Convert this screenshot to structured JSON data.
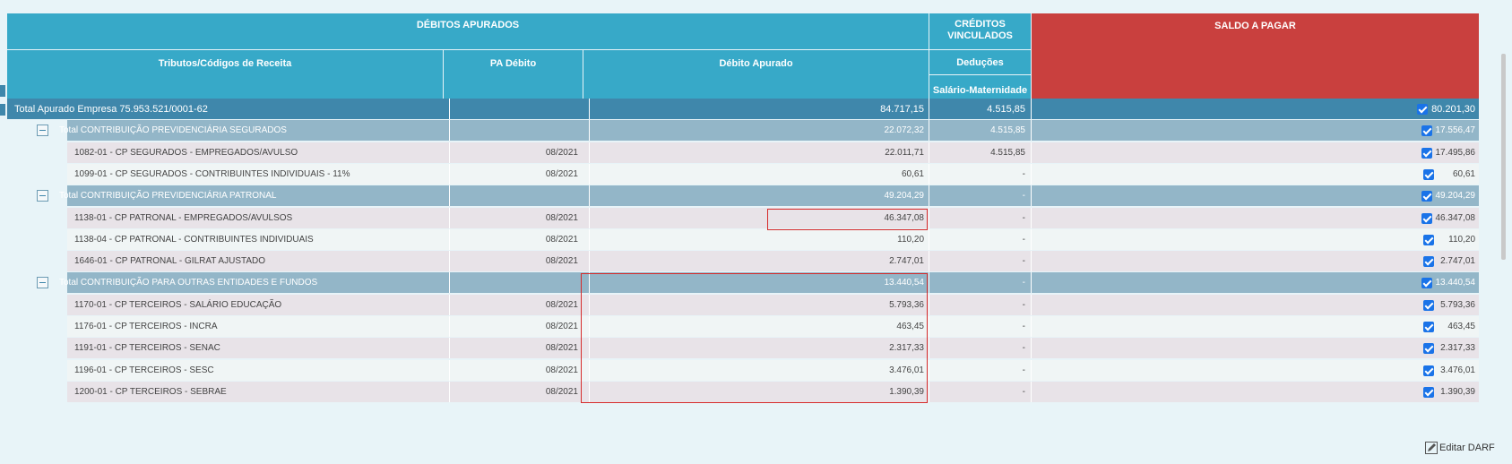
{
  "header": {
    "debitos_apurados": "DÉBITOS APURADOS",
    "creditos_vinculados_line1": "CRÉDITOS",
    "creditos_vinculados_line2": "VINCULADOS",
    "saldo_a_pagar": "SALDO A PAGAR",
    "col_tributos": "Tributos/Códigos de Receita",
    "col_pa_debito": "PA Débito",
    "col_debito_apurado": "Débito Apurado",
    "col_deducoes": "Deduções",
    "col_salario_maternidade": "Salário-Maternidade"
  },
  "rows": [
    {
      "type": "total",
      "label": "Total Apurado Empresa 75.953.521/0001-62",
      "pa": "",
      "debito": "84.717,15",
      "deducao": "4.515,85",
      "saldo": "80.201,30"
    },
    {
      "type": "group",
      "label": "Total CONTRIBUIÇÃO PREVIDENCIÁRIA SEGURADOS",
      "pa": "",
      "debito": "22.072,32",
      "deducao": "4.515,85",
      "saldo": "17.556,47"
    },
    {
      "type": "detail-a",
      "label": "1082-01 - CP SEGURADOS - EMPREGADOS/AVULSO",
      "pa": "08/2021",
      "debito": "22.011,71",
      "deducao": "4.515,85",
      "saldo": "17.495,86"
    },
    {
      "type": "detail-b",
      "label": "1099-01 - CP SEGURADOS - CONTRIBUINTES INDIVIDUAIS - 11%",
      "pa": "08/2021",
      "debito": "60,61",
      "deducao": "-",
      "saldo": "60,61"
    },
    {
      "type": "group",
      "label": "Total CONTRIBUIÇÃO PREVIDENCIÁRIA PATRONAL",
      "pa": "",
      "debito": "49.204,29",
      "deducao": "-",
      "saldo": "49.204,29"
    },
    {
      "type": "detail-a",
      "label": "1138-01 - CP PATRONAL - EMPREGADOS/AVULSOS",
      "pa": "08/2021",
      "debito": "46.347,08",
      "deducao": "-",
      "saldo": "46.347,08"
    },
    {
      "type": "detail-b",
      "label": "1138-04 - CP PATRONAL - CONTRIBUINTES INDIVIDUAIS",
      "pa": "08/2021",
      "debito": "110,20",
      "deducao": "-",
      "saldo": "110,20"
    },
    {
      "type": "detail-a",
      "label": "1646-01 - CP PATRONAL - GILRAT AJUSTADO",
      "pa": "08/2021",
      "debito": "2.747,01",
      "deducao": "-",
      "saldo": "2.747,01"
    },
    {
      "type": "group",
      "label": "Total CONTRIBUIÇÃO PARA OUTRAS ENTIDADES E FUNDOS",
      "pa": "",
      "debito": "13.440,54",
      "deducao": "-",
      "saldo": "13.440,54"
    },
    {
      "type": "detail-a",
      "label": "1170-01 - CP TERCEIROS - SALÁRIO EDUCAÇÃO",
      "pa": "08/2021",
      "debito": "5.793,36",
      "deducao": "-",
      "saldo": "5.793,36"
    },
    {
      "type": "detail-b",
      "label": "1176-01 - CP TERCEIROS - INCRA",
      "pa": "08/2021",
      "debito": "463,45",
      "deducao": "-",
      "saldo": "463,45"
    },
    {
      "type": "detail-a",
      "label": "1191-01 - CP TERCEIROS - SENAC",
      "pa": "08/2021",
      "debito": "2.317,33",
      "deducao": "-",
      "saldo": "2.317,33"
    },
    {
      "type": "detail-b",
      "label": "1196-01 - CP TERCEIROS - SESC",
      "pa": "08/2021",
      "debito": "3.476,01",
      "deducao": "-",
      "saldo": "3.476,01"
    },
    {
      "type": "detail-a",
      "label": "1200-01 - CP TERCEIROS - SEBRAE",
      "pa": "08/2021",
      "debito": "1.390,39",
      "deducao": "-",
      "saldo": "1.390,39"
    }
  ],
  "footer": {
    "edit_darf_label": "Editar DARF",
    "edit_icon": "pencil-icon"
  },
  "colors": {
    "header_teal": "#37a9c8",
    "header_red": "#c9403e",
    "total_row": "#3f87ab",
    "group_row": "#93b6c8",
    "checkbox": "#1a73e8",
    "highlight_box": "#d62b2b"
  }
}
